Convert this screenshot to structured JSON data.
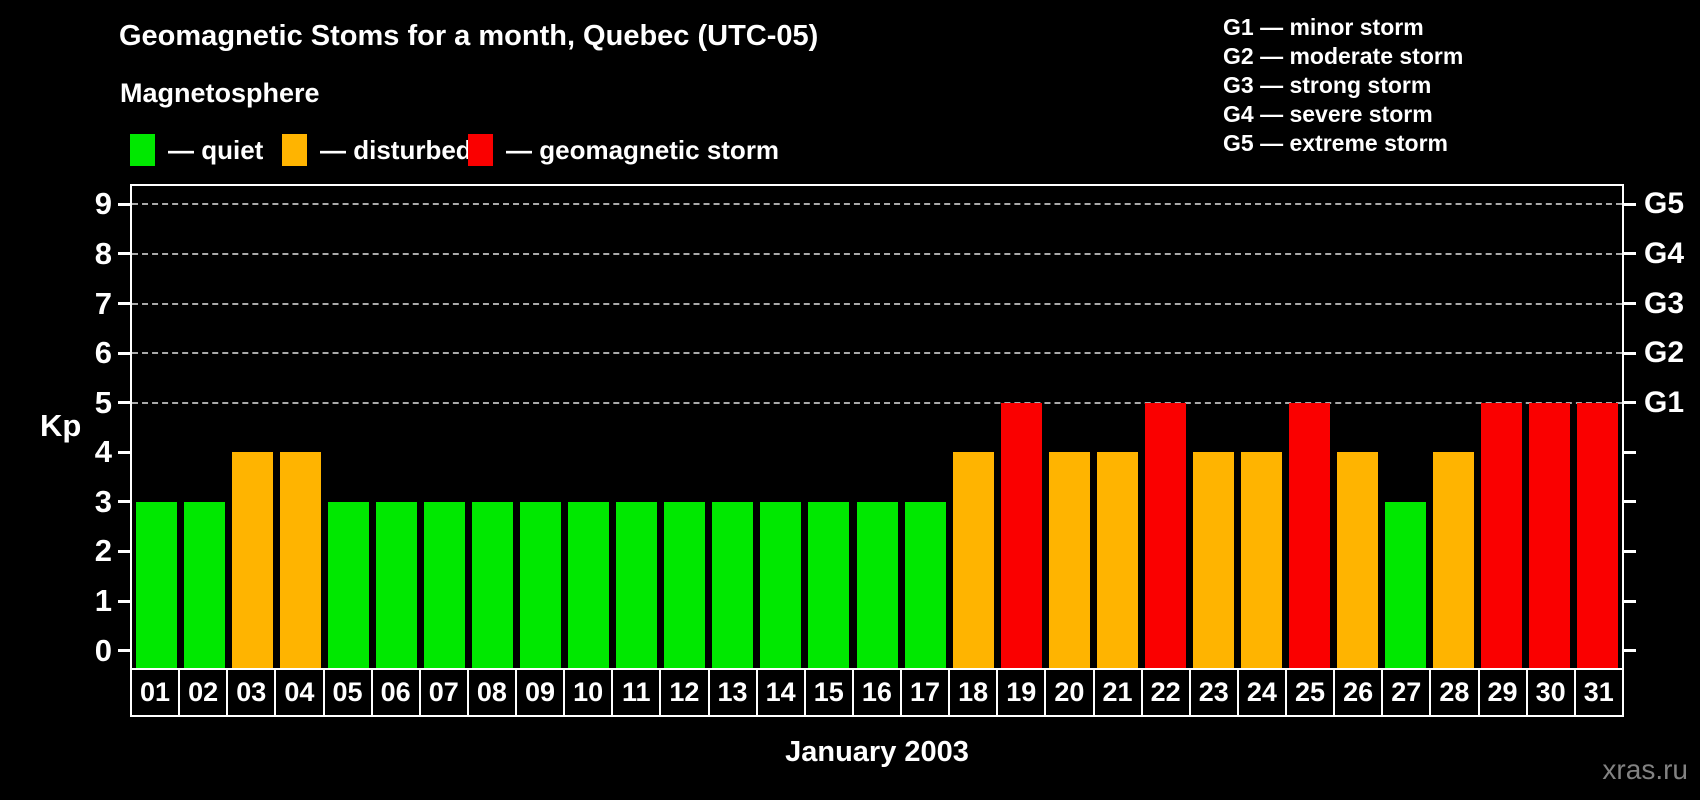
{
  "title": "Geomagnetic Stoms for a month, Quebec (UTC-05)",
  "watermark": "xras.ru",
  "magnetosphere_legend": {
    "heading": "Magnetosphere",
    "items": [
      {
        "status": "quiet",
        "label": "— quiet",
        "color": "#00e800"
      },
      {
        "status": "disturbed",
        "label": "— disturbed",
        "color": "#ffb400"
      },
      {
        "status": "storm",
        "label": "— geomagnetic storm",
        "color": "#fa0000"
      }
    ]
  },
  "g_scale_legend": [
    "G1 — minor storm",
    "G2 — moderate storm",
    "G3 — strong storm",
    "G4 — severe storm",
    "G5 — extreme storm"
  ],
  "chart_data": {
    "type": "bar",
    "title": "Geomagnetic Stoms for a month, Quebec (UTC-05)",
    "xlabel": "January 2003",
    "ylabel": "Kp",
    "ylim": [
      0,
      9
    ],
    "grid": "horizontal dashed lines at Kp 5-9 (G1-G5 levels)",
    "legend_position": "top-left",
    "categories": [
      "01",
      "02",
      "03",
      "04",
      "05",
      "06",
      "07",
      "08",
      "09",
      "10",
      "11",
      "12",
      "13",
      "14",
      "15",
      "16",
      "17",
      "18",
      "19",
      "20",
      "21",
      "22",
      "23",
      "24",
      "25",
      "26",
      "27",
      "28",
      "29",
      "30",
      "31"
    ],
    "values": [
      3,
      3,
      4,
      4,
      3,
      3,
      3,
      3,
      3,
      3,
      3,
      3,
      3,
      3,
      3,
      3,
      3,
      4,
      5,
      4,
      4,
      5,
      4,
      4,
      5,
      4,
      3,
      4,
      5,
      5,
      5
    ],
    "statuses": [
      "quiet",
      "quiet",
      "disturbed",
      "disturbed",
      "quiet",
      "quiet",
      "quiet",
      "quiet",
      "quiet",
      "quiet",
      "quiet",
      "quiet",
      "quiet",
      "quiet",
      "quiet",
      "quiet",
      "quiet",
      "disturbed",
      "storm",
      "disturbed",
      "disturbed",
      "storm",
      "disturbed",
      "disturbed",
      "storm",
      "disturbed",
      "quiet",
      "disturbed",
      "storm",
      "storm",
      "storm"
    ],
    "status_colors": {
      "quiet": "#00e800",
      "disturbed": "#ffb400",
      "storm": "#fa0000"
    },
    "left_ticks": [
      0,
      1,
      2,
      3,
      4,
      5,
      6,
      7,
      8,
      9
    ],
    "gridlines_at": [
      5,
      6,
      7,
      8,
      9
    ],
    "right_axis_labels": [
      {
        "value": 5,
        "label": "G1"
      },
      {
        "value": 6,
        "label": "G2"
      },
      {
        "value": 7,
        "label": "G3"
      },
      {
        "value": 8,
        "label": "G4"
      },
      {
        "value": 9,
        "label": "G5"
      }
    ]
  }
}
